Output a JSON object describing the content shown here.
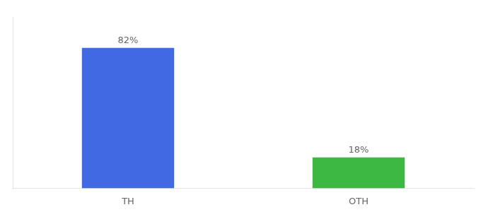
{
  "chart_data": {
    "type": "bar",
    "categories": [
      "TH",
      "OTH"
    ],
    "values": [
      82,
      18
    ],
    "value_labels": [
      "82%",
      "18%"
    ],
    "colors": [
      "#4169e1",
      "#3cb843"
    ],
    "ylim": [
      0,
      100
    ],
    "grid": false,
    "data_labels": true,
    "tick_labels": "x"
  }
}
